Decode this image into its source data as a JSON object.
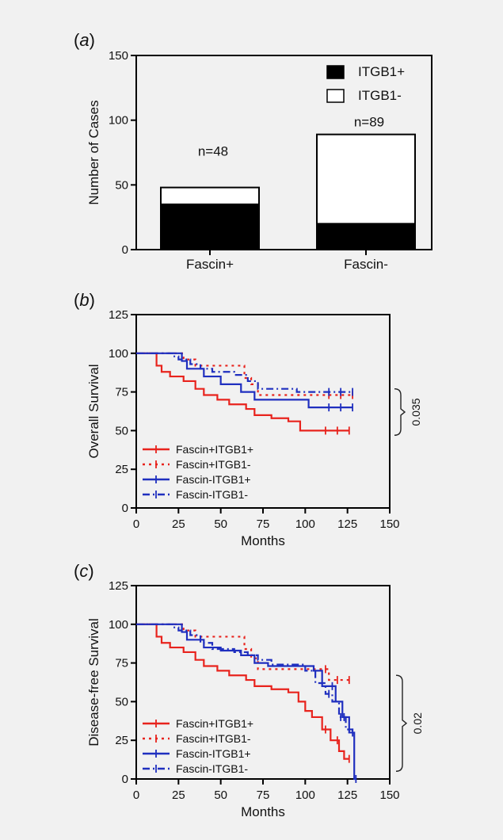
{
  "chart_data": [
    {
      "panel": "a",
      "panel_label": {
        "open": "(",
        "letter": "a",
        "close": ")"
      },
      "type": "bar",
      "stacked": true,
      "categories": [
        "Fascin+",
        "Fascin-"
      ],
      "series": [
        {
          "name": "ITGB1+",
          "values": [
            35,
            20
          ],
          "color": "#000000"
        },
        {
          "name": "ITGB1-",
          "values": [
            13,
            69
          ],
          "color": "#ffffff"
        }
      ],
      "totals": [
        48,
        89
      ],
      "annotations": [
        "n=48",
        "n=89"
      ],
      "xlabel": "",
      "ylabel": "Number of Cases",
      "ylim": [
        0,
        150
      ],
      "yticks": [
        "0",
        "50",
        "100",
        "150"
      ],
      "legend": "top-right",
      "grid": false
    },
    {
      "panel": "b",
      "panel_label": {
        "open": "(",
        "letter": "b",
        "close": ")"
      },
      "type": "line",
      "step": true,
      "xlabel": "Months",
      "ylabel": "Overall Survival",
      "xlim": [
        0,
        150
      ],
      "ylim": [
        0,
        125
      ],
      "xticks": [
        "0",
        "25",
        "50",
        "75",
        "100",
        "125",
        "150"
      ],
      "yticks": [
        "0",
        "25",
        "50",
        "75",
        "100",
        "125"
      ],
      "legend": "bottom-left",
      "grid": false,
      "pvalue": "0.035",
      "series": [
        {
          "name": "Fascin+ITGB1+",
          "color": "#e8231d",
          "dash": "solid",
          "x": [
            0,
            12,
            15,
            20,
            28,
            35,
            40,
            48,
            55,
            65,
            70,
            80,
            90,
            97,
            126
          ],
          "y": [
            100,
            92,
            88,
            85,
            82,
            77,
            73,
            70,
            67,
            64,
            60,
            58,
            56,
            50,
            50
          ]
        },
        {
          "name": "Fascin+ITGB1-",
          "color": "#e8231d",
          "dash": "dotted",
          "x": [
            0,
            25,
            28,
            35,
            64,
            68,
            72,
            128
          ],
          "y": [
            100,
            100,
            96,
            92,
            84,
            80,
            73,
            73
          ]
        },
        {
          "name": "Fascin-ITGB1+",
          "color": "#1f2fbf",
          "dash": "solid",
          "x": [
            0,
            27,
            30,
            40,
            50,
            62,
            70,
            102,
            128
          ],
          "y": [
            100,
            95,
            90,
            85,
            80,
            75,
            70,
            65,
            65
          ]
        },
        {
          "name": "Fascin-ITGB1-",
          "color": "#1f2fbf",
          "dash": "dashdot",
          "x": [
            0,
            22,
            25,
            32,
            38,
            45,
            58,
            66,
            72,
            95,
            128
          ],
          "y": [
            100,
            98,
            96,
            93,
            90,
            88,
            86,
            82,
            77,
            75,
            75
          ]
        }
      ]
    },
    {
      "panel": "c",
      "panel_label": {
        "open": "(",
        "letter": "c",
        "close": ")"
      },
      "type": "line",
      "step": true,
      "xlabel": "Months",
      "ylabel": "Disease-free Survival",
      "xlim": [
        0,
        150
      ],
      "ylim": [
        0,
        125
      ],
      "xticks": [
        "0",
        "25",
        "50",
        "75",
        "100",
        "125",
        "150"
      ],
      "yticks": [
        "0",
        "25",
        "50",
        "75",
        "100",
        "125"
      ],
      "legend": "bottom-left",
      "grid": false,
      "pvalue": "0.02",
      "series": [
        {
          "name": "Fascin+ITGB1+",
          "color": "#e8231d",
          "dash": "solid",
          "x": [
            0,
            12,
            15,
            20,
            28,
            35,
            40,
            48,
            55,
            65,
            70,
            80,
            90,
            96,
            100,
            104,
            110,
            115,
            120,
            123,
            126
          ],
          "y": [
            100,
            92,
            88,
            85,
            82,
            77,
            73,
            70,
            67,
            64,
            60,
            58,
            56,
            50,
            44,
            40,
            32,
            25,
            18,
            13,
            13
          ]
        },
        {
          "name": "Fascin+ITGB1-",
          "color": "#e8231d",
          "dash": "dotted",
          "x": [
            0,
            25,
            28,
            35,
            64,
            68,
            72,
            110,
            114,
            126
          ],
          "y": [
            100,
            100,
            96,
            92,
            84,
            78,
            71,
            71,
            64,
            64
          ]
        },
        {
          "name": "Fascin-ITGB1+",
          "color": "#1f2fbf",
          "dash": "solid",
          "x": [
            0,
            27,
            30,
            40,
            50,
            62,
            70,
            78,
            105,
            110,
            118,
            122,
            126,
            129,
            130
          ],
          "y": [
            100,
            95,
            90,
            85,
            83,
            80,
            75,
            73,
            70,
            60,
            50,
            40,
            30,
            0,
            0
          ]
        },
        {
          "name": "Fascin-ITGB1-",
          "color": "#1f2fbf",
          "dash": "dashdot",
          "x": [
            0,
            22,
            25,
            32,
            38,
            45,
            58,
            66,
            72,
            80,
            100,
            106,
            112,
            116,
            120,
            124,
            128
          ],
          "y": [
            100,
            98,
            96,
            93,
            88,
            84,
            82,
            80,
            77,
            74,
            70,
            62,
            55,
            50,
            40,
            32,
            30
          ]
        }
      ]
    }
  ]
}
